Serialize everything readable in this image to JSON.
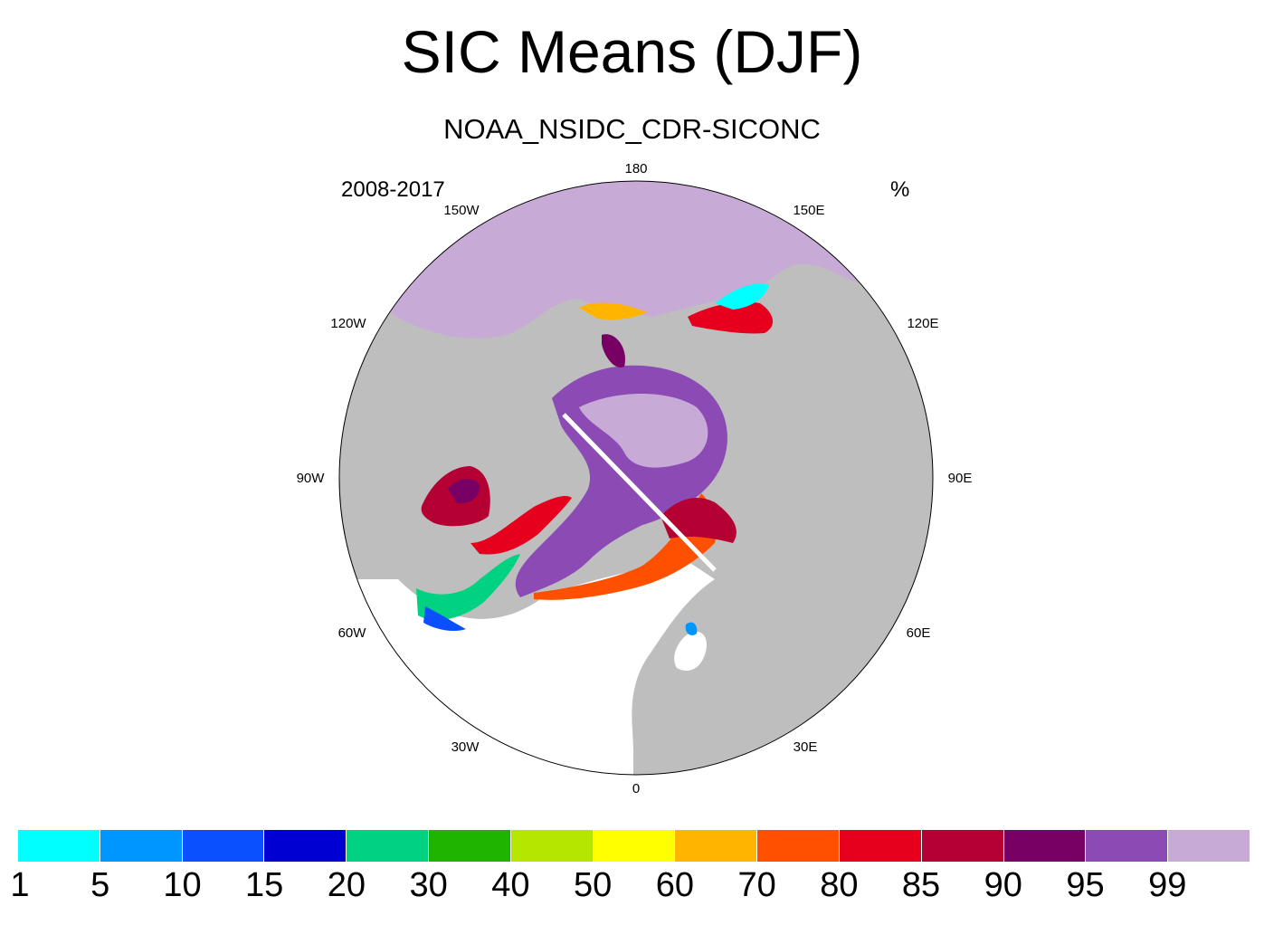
{
  "title": "SIC Means (DJF)",
  "subtitle": "NOAA_NSIDC_CDR-SICONC",
  "left_string": "2008-2017",
  "right_string": "%",
  "longitude_labels": {
    "top": "180",
    "top_left": "150W",
    "top_right": "150E",
    "upper_left": "120W",
    "upper_right": "120E",
    "left": "90W",
    "right": "90E",
    "lower_left": "60W",
    "lower_right": "60E",
    "bottom_left": "30W",
    "bottom_right": "30E",
    "bottom": "0"
  },
  "colors": {
    "land": "#bebebe",
    "ocean": "#ffffff"
  },
  "colorbar": {
    "levels": [
      "1",
      "5",
      "10",
      "15",
      "20",
      "30",
      "40",
      "50",
      "60",
      "70",
      "80",
      "85",
      "90",
      "95",
      "99"
    ],
    "colors": [
      "#00ffff",
      "#0096ff",
      "#0a50ff",
      "#0000d2",
      "#00d282",
      "#1eb400",
      "#b4e600",
      "#ffff00",
      "#ffb400",
      "#ff5000",
      "#e6001e",
      "#b40032",
      "#780064",
      "#8c4bb4",
      "#c8aad7"
    ]
  }
}
